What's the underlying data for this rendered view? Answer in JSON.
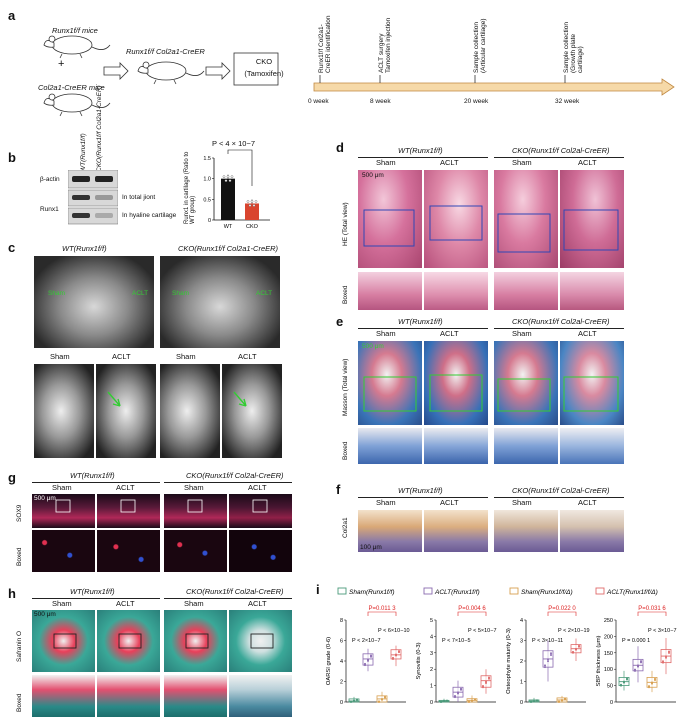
{
  "panels": {
    "a": "a",
    "b": "b",
    "c": "c",
    "d": "d",
    "e": "e",
    "f": "f",
    "g": "g",
    "h": "h",
    "i": "i"
  },
  "a": {
    "mouse1": "Runx1f/f mice",
    "mouse2": "Col2a1-CreER mice",
    "mouse3": "Runx1f/f Col2a1-CreER",
    "plus": "+",
    "cko_line1": "CKO",
    "cko_line2": "(Tamoxifen)",
    "events": [
      "Runx1f/f Col2a1-CreER identification",
      "ACLT surgery Tamoxifen injection",
      "Sample collection (Articular cartilage)",
      "Sample collection (Growth plate cartilage)"
    ],
    "weeks": [
      "0 week",
      "8 week",
      "20 week",
      "32 week"
    ]
  },
  "b": {
    "col1": "WT(Runx1f/f)",
    "col2": "CKO(Runx1f/f Col2a1-CreER)",
    "row_actin": "β-actin",
    "row_runx": "Runx1",
    "sub1": "In total jiont",
    "sub2": "In hyaline cartilage",
    "pval": "P < 4 × 10−7",
    "ylabel": "Runx1 in cartilage (Ratio to WT group)",
    "chart_data": {
      "type": "bar",
      "categories": [
        "WT",
        "CKO"
      ],
      "values": [
        1.0,
        0.4
      ],
      "ylim": [
        0,
        1.5
      ],
      "yticks": [
        "0",
        "0.5",
        "1.0",
        "1.5"
      ],
      "colors": [
        "#111111",
        "#d9452f"
      ]
    }
  },
  "c": {
    "wt": "WT(Runx1f/f)",
    "cko": "CKO(Runx1f/f Col2a1-CreER)",
    "sham": "Sham",
    "aclt": "ACLT"
  },
  "d": {
    "wt": "WT(Runx1f/f)",
    "cko": "CKO(Runx1f/f Col2al-CreER)",
    "sham": "Sham",
    "aclt": "ACLT",
    "scale": "500 μm",
    "row1": "HE (Total view)",
    "row2": "Boxed"
  },
  "e": {
    "wt": "WT(Runx1f/f)",
    "cko": "CKO(Runx1f/f Col2al-CreER)",
    "sham": "Sham",
    "aclt": "ACLT",
    "scale": "500 μm",
    "row1": "Masson (Total view)",
    "row2": "Boxed"
  },
  "f": {
    "wt": "WT(Runx1f/f)",
    "cko": "CKO(Runx1f/f Col2al-CreER)",
    "sham": "Sham",
    "aclt": "ACLT",
    "row": "Col2a1",
    "scale": "100 μm"
  },
  "g": {
    "wt": "WT(Runx1f/f)",
    "cko": "CKO(Runx1f/f Col2al-CreER)",
    "sham": "Sham",
    "aclt": "ACLT",
    "scale": "500 μm",
    "row1": "SOX9",
    "row2": "Boxed"
  },
  "h": {
    "wt": "WT(Runx1f/f)",
    "cko": "CKO(Runx1f/f Col2al-CreER)",
    "sham": "Sham",
    "aclt": "ACLT",
    "scale": "500 μm",
    "row1": "Safranin O",
    "row2": "Boxed"
  },
  "i": {
    "legend": [
      "Sham(Runx1f/f)",
      "ACLT(Runx1f/f)",
      "Sham(Runx1f/f/Δ)",
      "ACLT(Runx1f/f/Δ)"
    ],
    "chart_data": [
      {
        "type": "box",
        "ylabel": "OARSI grade (0-6)",
        "yticks": [
          "0",
          "2",
          "4",
          "6",
          "8"
        ],
        "ylim": [
          0,
          8
        ],
        "medians": [
          0.1,
          4.2,
          0.3,
          4.6
        ],
        "q1": [
          0,
          3.6,
          0,
          4.2
        ],
        "q3": [
          0.3,
          4.7,
          0.6,
          5.1
        ],
        "min": [
          0,
          3.0,
          0,
          3.5
        ],
        "max": [
          0.5,
          5.2,
          1.0,
          5.5
        ],
        "red_p": "P=0.011 3",
        "p1": "P < 2×10−7",
        "p2": "P < 6×10−10"
      },
      {
        "type": "box",
        "ylabel": "Synovitis (0-3)",
        "yticks": [
          "0",
          "1",
          "2",
          "3",
          "4",
          "5"
        ],
        "ylim": [
          0,
          5
        ],
        "medians": [
          0.05,
          0.6,
          0.1,
          1.3
        ],
        "q1": [
          0,
          0.3,
          0,
          0.9
        ],
        "q3": [
          0.1,
          0.9,
          0.2,
          1.6
        ],
        "min": [
          0,
          0,
          0,
          0.5
        ],
        "max": [
          0.2,
          1.3,
          0.4,
          2.0
        ],
        "red_p": "P=0.004 6",
        "p1": "P < 7×10−5",
        "p2": "P < 5×10−7"
      },
      {
        "type": "box",
        "ylabel": "Osteophyte maturity (0-3)",
        "yticks": [
          "0",
          "1",
          "2",
          "3",
          "4"
        ],
        "ylim": [
          0,
          4
        ],
        "medians": [
          0.05,
          2.1,
          0.1,
          2.6
        ],
        "q1": [
          0,
          1.7,
          0,
          2.4
        ],
        "q3": [
          0.1,
          2.5,
          0.2,
          2.8
        ],
        "min": [
          0,
          1.0,
          0,
          2.0
        ],
        "max": [
          0.2,
          3.0,
          0.3,
          3.1
        ],
        "red_p": "P=0.022 0",
        "p1": "P < 3×10−11",
        "p2": "P < 2×10−19"
      },
      {
        "type": "box",
        "ylabel": "SBP thickness (μm)",
        "yticks": [
          "0",
          "50",
          "100",
          "150",
          "200",
          "250"
        ],
        "ylim": [
          0,
          250
        ],
        "medians": [
          62,
          112,
          60,
          140
        ],
        "q1": [
          50,
          95,
          45,
          120
        ],
        "q3": [
          75,
          130,
          75,
          160
        ],
        "min": [
          35,
          60,
          30,
          85
        ],
        "max": [
          95,
          170,
          95,
          195
        ],
        "red_p": "P=0.031 6",
        "p1": "P = 0.000 1",
        "p2": "P < 3×10−7"
      }
    ]
  }
}
